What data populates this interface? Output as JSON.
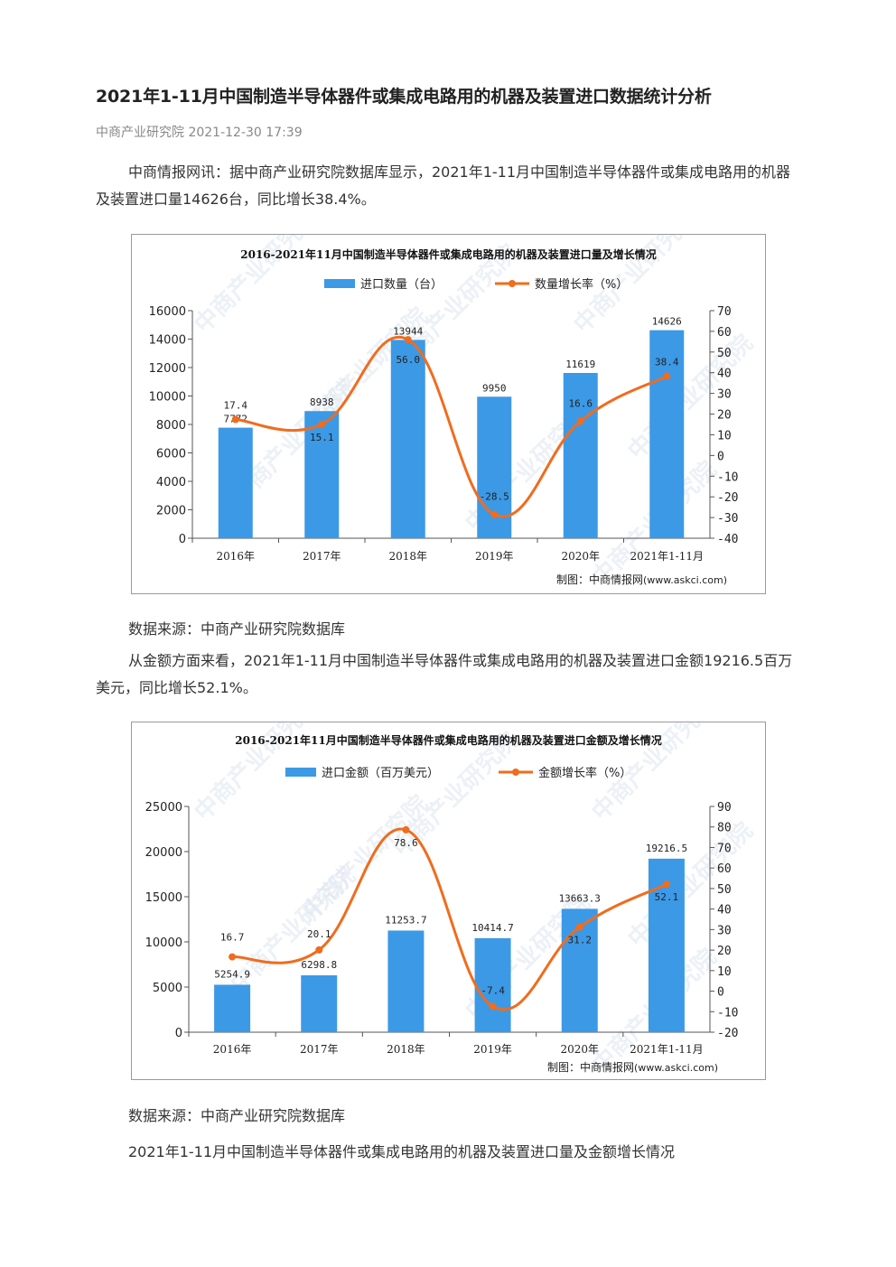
{
  "article": {
    "title": "2021年1-11月中国制造半导体器件或集成电路用的机器及装置进口数据统计分析",
    "meta": "中商产业研究院 2021-12-30 17:39",
    "para1": "中商情报网讯：据中商产业研究院数据库显示，2021年1-11月中国制造半导体器件或集成电路用的机器及装置进口量14626台，同比增长38.4%。",
    "source1": "数据来源：中商产业研究院数据库",
    "para2": "从金额方面来看，2021年1-11月中国制造半导体器件或集成电路用的机器及装置进口金额19216.5百万美元，同比增长52.1%。",
    "source2": "数据来源：中商产业研究院数据库",
    "para3": "2021年1-11月中国制造半导体器件或集成电路用的机器及装置进口量及金额增长情况"
  },
  "colors": {
    "bar": "#3c99e6",
    "line": "#f06c1e",
    "watermark": "#dde6f0"
  },
  "chart_data": [
    {
      "type": "bar",
      "title": "2016-2021年11月中国制造半导体器件或集成电路用的机器及装置进口量及增长情况",
      "categories": [
        "2016年",
        "2017年",
        "2018年",
        "2019年",
        "2020年",
        "2021年1-11月"
      ],
      "bar_series": {
        "name": "进口数量（台）",
        "values": [
          7772,
          8938,
          13944,
          9950,
          11619,
          14626
        ],
        "labels": [
          "7772",
          "8938",
          "13944",
          "9950",
          "11619",
          "14626"
        ]
      },
      "line_series": {
        "name": "数量增长率（%）",
        "values": [
          17.4,
          15.1,
          56.0,
          -28.5,
          16.6,
          38.4
        ],
        "labels": [
          "17.4",
          "15.1",
          "56.0",
          "-28.5",
          "16.6",
          "38.4"
        ]
      },
      "left_ticks": [
        "0",
        "2000",
        "4000",
        "6000",
        "8000",
        "10000",
        "12000",
        "14000",
        "16000"
      ],
      "right_ticks": [
        "-40",
        "-30",
        "-20",
        "-10",
        "0",
        "10",
        "20",
        "30",
        "40",
        "50",
        "60",
        "70"
      ],
      "left_range": [
        0,
        16000
      ],
      "right_range": [
        -40,
        70
      ],
      "legend_position": "top-center",
      "credit_label": "制图：中商情报网",
      "credit_url": "(www.askci.com)",
      "watermark": "中商产业研究院"
    },
    {
      "type": "bar",
      "title": "2016-2021年11月中国制造半导体器件或集成电路用的机器及装置进口金额及增长情况",
      "categories": [
        "2016年",
        "2017年",
        "2018年",
        "2019年",
        "2020年",
        "2021年1-11月"
      ],
      "bar_series": {
        "name": "进口金额（百万美元）",
        "values": [
          5254.9,
          6298.8,
          11253.7,
          10414.7,
          13663.3,
          19216.5
        ],
        "labels": [
          "5254.9",
          "6298.8",
          "11253.7",
          "10414.7",
          "13663.3",
          "19216.5"
        ]
      },
      "line_series": {
        "name": "金额增长率（%）",
        "values": [
          16.7,
          20.1,
          78.6,
          -7.4,
          31.2,
          52.1
        ],
        "labels": [
          "16.7",
          "20.1",
          "78.6",
          "-7.4",
          "31.2",
          "52.1"
        ]
      },
      "left_ticks": [
        "0",
        "5000",
        "10000",
        "15000",
        "20000",
        "25000"
      ],
      "right_ticks": [
        "-20",
        "-10",
        "0",
        "10",
        "20",
        "30",
        "40",
        "50",
        "60",
        "70",
        "80",
        "90"
      ],
      "left_range": [
        0,
        25000
      ],
      "right_range": [
        -20,
        90
      ],
      "legend_position": "top-center",
      "credit_label": "制图：中商情报网",
      "credit_url": "(www.askci.com)",
      "watermark": "中商产业研究院"
    }
  ]
}
